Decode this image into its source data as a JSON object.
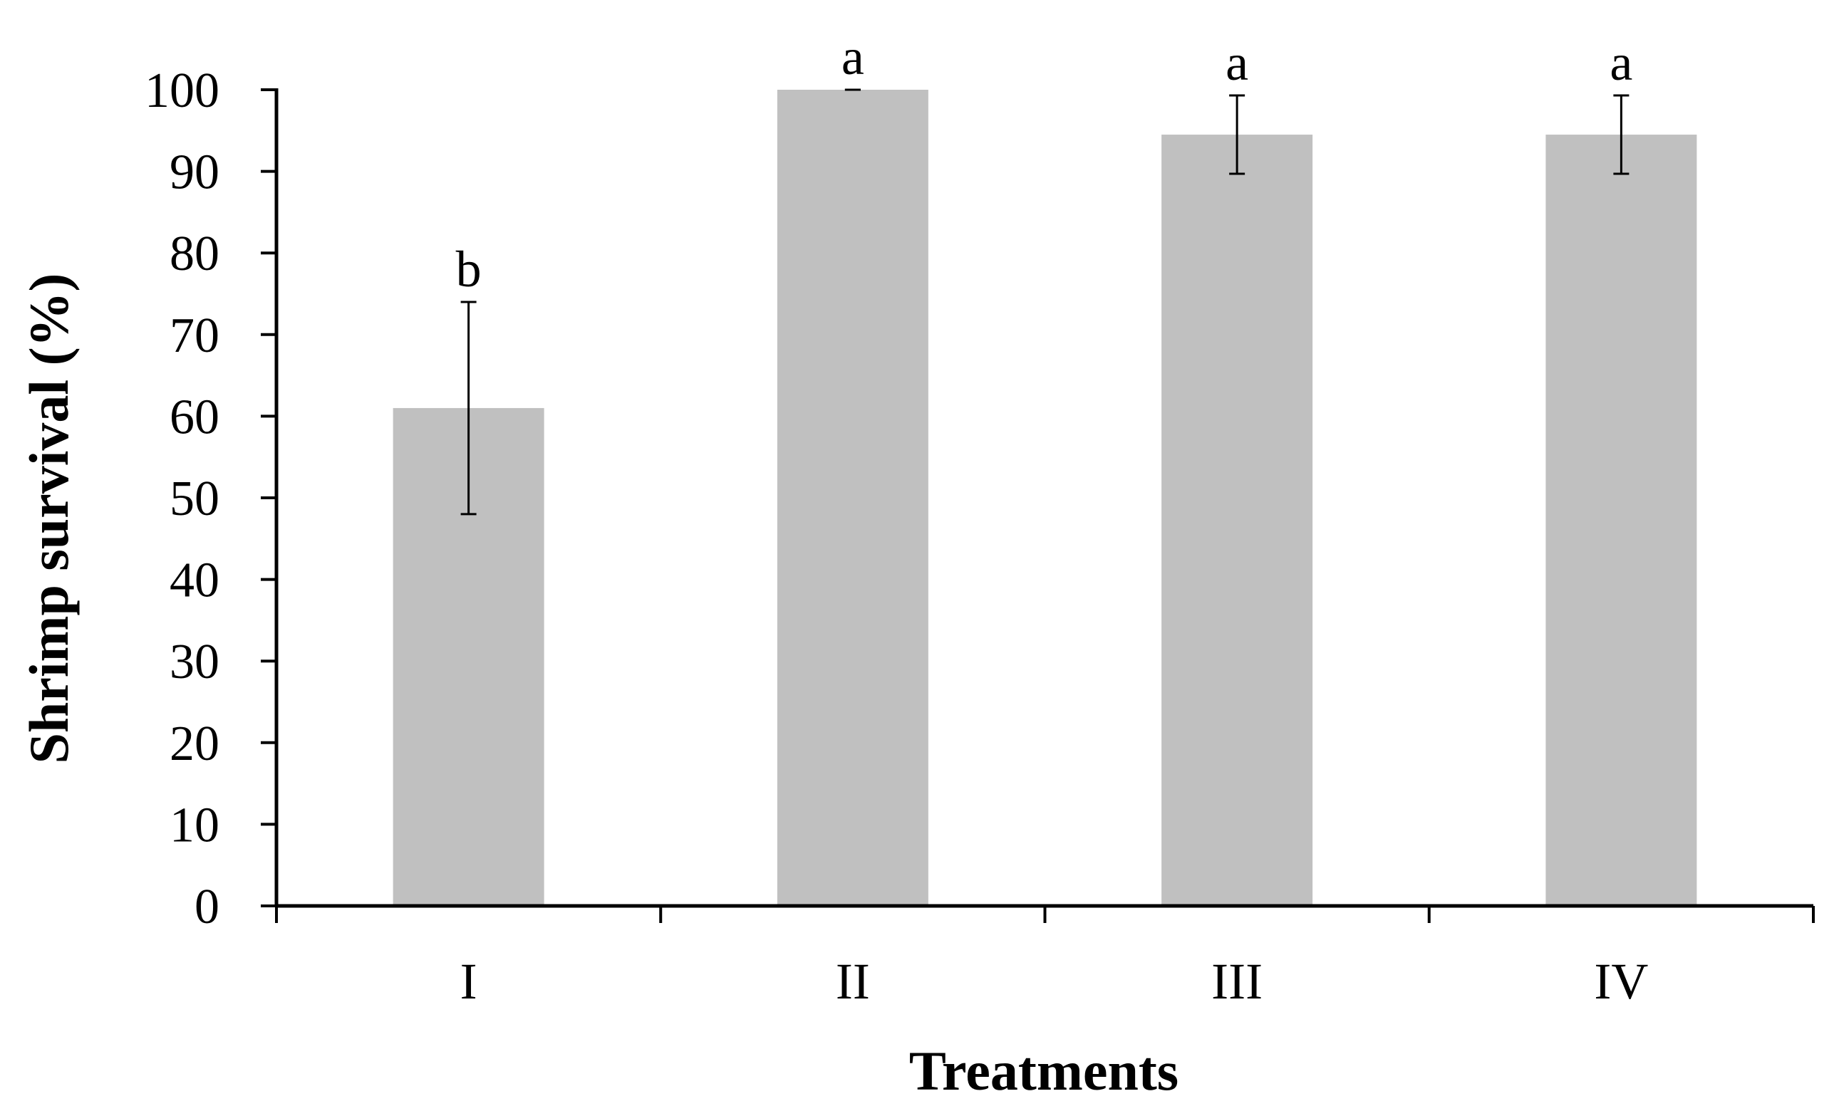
{
  "chart_data": {
    "type": "bar",
    "title": "",
    "xlabel": "Treatments",
    "ylabel": "Shrimp survival (%)",
    "ylim": [
      0,
      100
    ],
    "yticks": [
      0,
      10,
      20,
      30,
      40,
      50,
      60,
      70,
      80,
      90,
      100
    ],
    "categories": [
      "I",
      "II",
      "III",
      "IV"
    ],
    "values": [
      61,
      100,
      94.5,
      94.5
    ],
    "errors": [
      13,
      0,
      4.8,
      4.8
    ],
    "significance": [
      "b",
      "a",
      "a",
      "a"
    ],
    "grid": false,
    "legend": "none",
    "colors": {
      "bar": "#c0c0c0",
      "axis": "#000000",
      "error": "#000000"
    }
  }
}
